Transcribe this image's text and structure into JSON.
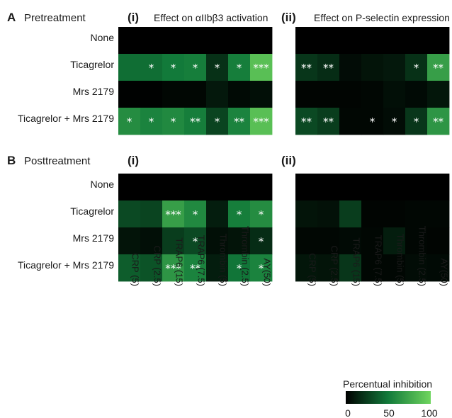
{
  "colors": {
    "low": "#000000",
    "mid": "#127a3a",
    "high": "#6fd55e",
    "star": "#ffffff",
    "text": "#1a1a1a"
  },
  "rows": [
    "None",
    "Ticagrelor",
    "Mrs 2179",
    "Ticagrelor + Mrs 2179"
  ],
  "columns": [
    "CRP (5)",
    "CRP (2.5)",
    "TRAP6 (15)",
    "TRAP6 (7.5)",
    "Thrombin (5)",
    "Thrombin (2.5)",
    "AY(50)"
  ],
  "sections": [
    {
      "letter": "A",
      "label": "Pretreatment"
    },
    {
      "letter": "B",
      "label": "Posttreatment"
    }
  ],
  "colorbar": {
    "title": "Percentual inhibition",
    "ticks": [
      "0",
      "50",
      "100"
    ],
    "range": [
      0,
      100
    ]
  },
  "chart_data": [
    {
      "type": "heatmap",
      "section": "A",
      "panel": "(i)",
      "title": "Effect on αIIbβ3 activation",
      "rows": [
        "None",
        "Ticagrelor",
        "Mrs 2179",
        "Ticagrelor + Mrs 2179"
      ],
      "columns": [
        "CRP (5)",
        "CRP (2.5)",
        "TRAP6 (15)",
        "TRAP6 (7.5)",
        "Thrombin (5)",
        "Thrombin (2.5)",
        "AY(50)"
      ],
      "values": [
        [
          0,
          0,
          0,
          0,
          0,
          0,
          0
        ],
        [
          45,
          45,
          50,
          52,
          20,
          52,
          88
        ],
        [
          1,
          1,
          3,
          3,
          10,
          4,
          6
        ],
        [
          60,
          55,
          58,
          52,
          28,
          55,
          88
        ]
      ],
      "significance": [
        [
          "",
          "",
          "",
          "",
          "",
          "",
          ""
        ],
        [
          "",
          "*",
          "*",
          "*",
          "*",
          "*",
          "***"
        ],
        [
          "",
          "",
          "",
          "",
          "",
          "",
          ""
        ],
        [
          "*",
          "*",
          "*",
          "**",
          "*",
          "**",
          "***"
        ]
      ]
    },
    {
      "type": "heatmap",
      "section": "A",
      "panel": "(ii)",
      "title": "Effect on P-selectin expression",
      "rows": [
        "None",
        "Ticagrelor",
        "Mrs 2179",
        "Ticagrelor + Mrs 2179"
      ],
      "columns": [
        "CRP (5)",
        "CRP (2.5)",
        "TRAP6 (15)",
        "TRAP6 (7.5)",
        "Thrombin (5)",
        "Thrombin (2.5)",
        "AY(50)"
      ],
      "values": [
        [
          0,
          0,
          0,
          0,
          0,
          0,
          0
        ],
        [
          22,
          18,
          5,
          8,
          10,
          20,
          70
        ],
        [
          2,
          2,
          2,
          3,
          6,
          4,
          9
        ],
        [
          30,
          25,
          3,
          3,
          5,
          22,
          65
        ]
      ],
      "significance": [
        [
          "",
          "",
          "",
          "",
          "",
          "",
          ""
        ],
        [
          "**",
          "**",
          "",
          "",
          "",
          "*",
          "**"
        ],
        [
          "",
          "",
          "",
          "",
          "",
          "",
          ""
        ],
        [
          "**",
          "**",
          "",
          "*",
          "*",
          "*",
          "**"
        ]
      ]
    },
    {
      "type": "heatmap",
      "section": "B",
      "panel": "(i)",
      "title": "",
      "rows": [
        "None",
        "Ticagrelor",
        "Mrs 2179",
        "Ticagrelor + Mrs 2179"
      ],
      "columns": [
        "CRP (5)",
        "CRP (2.5)",
        "TRAP6 (15)",
        "TRAP6 (7.5)",
        "Thrombin (5)",
        "Thrombin (2.5)",
        "AY(50)"
      ],
      "values": [
        [
          0,
          0,
          0,
          0,
          0,
          0,
          0
        ],
        [
          30,
          28,
          70,
          58,
          12,
          52,
          60
        ],
        [
          8,
          6,
          25,
          30,
          6,
          8,
          18
        ],
        [
          38,
          34,
          65,
          55,
          12,
          48,
          55
        ]
      ],
      "significance": [
        [
          "",
          "",
          "",
          "",
          "",
          "",
          ""
        ],
        [
          "",
          "",
          "***",
          "*",
          "",
          "*",
          "*"
        ],
        [
          "",
          "",
          "",
          "*",
          "",
          "",
          "*"
        ],
        [
          "",
          "",
          "***",
          "**",
          "",
          "*",
          "*"
        ]
      ]
    },
    {
      "type": "heatmap",
      "section": "B",
      "panel": "(ii)",
      "title": "",
      "rows": [
        "None",
        "Ticagrelor",
        "Mrs 2179",
        "Ticagrelor + Mrs 2179"
      ],
      "columns": [
        "CRP (5)",
        "CRP (2.5)",
        "TRAP6 (15)",
        "TRAP6 (7.5)",
        "Thrombin (5)",
        "Thrombin (2.5)",
        "AY(50)"
      ],
      "values": [
        [
          0,
          0,
          0,
          0,
          0,
          0,
          0
        ],
        [
          8,
          7,
          25,
          2,
          2,
          3,
          3
        ],
        [
          3,
          3,
          4,
          3,
          12,
          3,
          2
        ],
        [
          9,
          8,
          22,
          3,
          3,
          5,
          4
        ]
      ],
      "significance": [
        [
          "",
          "",
          "",
          "",
          "",
          "",
          ""
        ],
        [
          "",
          "",
          "",
          "",
          "",
          "",
          ""
        ],
        [
          "",
          "",
          "",
          "",
          "",
          "",
          ""
        ],
        [
          "",
          "",
          "",
          "",
          "",
          "",
          ""
        ]
      ]
    }
  ]
}
